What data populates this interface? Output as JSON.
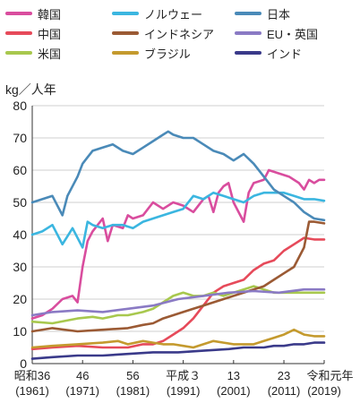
{
  "chart_data": {
    "type": "line",
    "title": "",
    "ylabel": "kg／人年",
    "xlabel": "年",
    "xlim": [
      1961,
      2019
    ],
    "ylim": [
      0,
      80
    ],
    "yticks": [
      0,
      10,
      20,
      30,
      40,
      50,
      60,
      70,
      80
    ],
    "xticks": [
      {
        "x": 1961,
        "top": "昭和36",
        "bottom": "(1961)"
      },
      {
        "x": 1971,
        "top": "46",
        "bottom": "(1971)"
      },
      {
        "x": 1981,
        "top": "56",
        "bottom": "(1981)"
      },
      {
        "x": 1991,
        "top": "平成３",
        "bottom": "(1991)"
      },
      {
        "x": 2001,
        "top": "13",
        "bottom": "(2001)"
      },
      {
        "x": 2011,
        "top": "23",
        "bottom": "(2011)"
      },
      {
        "x": 2019,
        "top": "令和元",
        "bottom": "(2019)"
      }
    ],
    "grid": true,
    "legend_position": "top",
    "series": [
      {
        "name": "韓国",
        "color": "#d94d9e",
        "x": [
          1961,
          1963,
          1965,
          1967,
          1969,
          1970,
          1971,
          1972,
          1973,
          1975,
          1976,
          1977,
          1979,
          1980,
          1981,
          1983,
          1984,
          1985,
          1987,
          1989,
          1991,
          1993,
          1995,
          1996,
          1997,
          1998,
          1999,
          2000,
          2001,
          2003,
          2004,
          2005,
          2007,
          2008,
          2010,
          2012,
          2014,
          2015,
          2016,
          2017,
          2018,
          2019
        ],
        "y": [
          14,
          15,
          17,
          20,
          21,
          19,
          30,
          38,
          41,
          45,
          38,
          43,
          42,
          46,
          45,
          46,
          48,
          50,
          48,
          50,
          49,
          47,
          51,
          52,
          47,
          53,
          55,
          56,
          50,
          44,
          53,
          56,
          57,
          60,
          59,
          58,
          56,
          54,
          57,
          56,
          57,
          57
        ]
      },
      {
        "name": "中国",
        "color": "#e64a5a",
        "x": [
          1961,
          1965,
          1970,
          1975,
          1978,
          1980,
          1983,
          1985,
          1987,
          1989,
          1991,
          1993,
          1995,
          1997,
          1999,
          2001,
          2003,
          2005,
          2007,
          2009,
          2011,
          2013,
          2015,
          2017,
          2019
        ],
        "y": [
          4.5,
          5,
          5.5,
          5,
          5,
          5,
          6,
          6,
          7,
          9,
          11,
          14,
          18,
          22,
          24,
          25,
          26,
          29,
          31,
          32,
          35,
          37,
          39,
          38.5,
          38.5
        ]
      },
      {
        "name": "米国",
        "color": "#a8c84e",
        "x": [
          1961,
          1965,
          1970,
          1973,
          1975,
          1978,
          1980,
          1983,
          1985,
          1987,
          1989,
          1991,
          1993,
          1995,
          1997,
          1999,
          2001,
          2003,
          2005,
          2007,
          2009,
          2011,
          2013,
          2015,
          2017,
          2019
        ],
        "y": [
          13,
          12.5,
          14,
          14.5,
          14,
          15,
          15,
          16,
          17,
          19,
          21,
          22,
          21,
          21,
          22,
          21,
          22,
          23,
          24,
          23,
          22,
          22,
          22,
          22,
          22,
          22
        ]
      },
      {
        "name": "ノルウェー",
        "color": "#3bb6e0",
        "x": [
          1961,
          1963,
          1965,
          1967,
          1969,
          1971,
          1972,
          1973,
          1975,
          1977,
          1979,
          1981,
          1983,
          1985,
          1987,
          1989,
          1991,
          1993,
          1995,
          1997,
          1999,
          2001,
          2003,
          2005,
          2007,
          2009,
          2011,
          2013,
          2015,
          2017,
          2019
        ],
        "y": [
          40,
          41,
          43,
          37,
          42,
          36,
          44,
          43,
          42,
          43,
          43,
          42,
          44,
          45,
          46,
          47,
          48,
          52,
          51,
          53,
          52,
          51,
          50,
          52,
          53,
          53,
          53,
          52,
          51,
          51,
          50.5
        ]
      },
      {
        "name": "インドネシア",
        "color": "#9b5a34",
        "x": [
          1961,
          1965,
          1970,
          1975,
          1980,
          1983,
          1985,
          1987,
          1989,
          1991,
          1993,
          1995,
          1997,
          1999,
          2001,
          2003,
          2005,
          2007,
          2009,
          2011,
          2013,
          2015,
          2016,
          2017,
          2019
        ],
        "y": [
          10,
          11,
          10,
          10.5,
          11,
          12,
          12.5,
          14,
          15,
          16,
          17,
          18,
          19,
          20,
          21,
          22,
          23,
          24,
          26,
          28,
          30,
          36,
          44,
          44,
          43.5
        ]
      },
      {
        "name": "ブラジル",
        "color": "#c49a2e",
        "x": [
          1961,
          1965,
          1970,
          1975,
          1978,
          1980,
          1983,
          1985,
          1987,
          1989,
          1991,
          1993,
          1995,
          1997,
          1999,
          2001,
          2003,
          2005,
          2007,
          2009,
          2011,
          2013,
          2015,
          2017,
          2019
        ],
        "y": [
          5,
          5.5,
          6,
          6.5,
          7,
          6,
          7,
          6.5,
          6,
          6,
          5.5,
          5,
          6,
          7,
          6.5,
          6,
          6,
          6,
          7,
          8,
          9,
          10.5,
          9,
          8.5,
          8.5
        ]
      },
      {
        "name": "日本",
        "color": "#4a8ab8",
        "x": [
          1961,
          1963,
          1965,
          1967,
          1968,
          1970,
          1971,
          1972,
          1973,
          1975,
          1977,
          1979,
          1981,
          1983,
          1985,
          1987,
          1988,
          1989,
          1991,
          1993,
          1995,
          1997,
          1999,
          2001,
          2003,
          2005,
          2007,
          2009,
          2011,
          2013,
          2015,
          2017,
          2019
        ],
        "y": [
          50,
          51,
          52,
          46,
          52,
          58,
          62,
          64,
          66,
          67,
          68,
          66,
          65,
          67,
          69,
          71,
          72,
          71,
          70,
          70,
          68,
          66,
          65,
          63,
          65,
          62,
          58,
          54,
          52,
          50,
          47,
          45,
          44.5
        ]
      },
      {
        "name": "EU・英国",
        "color": "#8a7ac4",
        "x": [
          1961,
          1965,
          1970,
          1975,
          1980,
          1985,
          1990,
          1995,
          2000,
          2005,
          2010,
          2015,
          2019
        ],
        "y": [
          15,
          16,
          16.5,
          16,
          17,
          18,
          20,
          21,
          22,
          22.5,
          22,
          23,
          23
        ]
      },
      {
        "name": "インド",
        "color": "#3a3a8a",
        "x": [
          1961,
          1965,
          1970,
          1975,
          1980,
          1985,
          1990,
          1995,
          2000,
          2003,
          2005,
          2007,
          2009,
          2011,
          2013,
          2015,
          2017,
          2019
        ],
        "y": [
          1.5,
          2,
          2.5,
          2.5,
          3,
          3.5,
          3.5,
          4,
          4.5,
          5,
          5,
          5,
          5.5,
          5.5,
          6,
          6,
          6.5,
          6.5
        ]
      }
    ]
  }
}
